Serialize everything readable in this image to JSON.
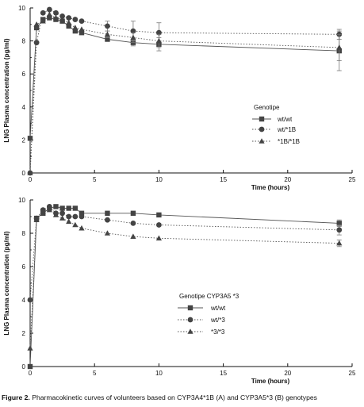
{
  "caption": {
    "label": "Figure 2.",
    "text": "Pharmacokinetic curves of volunteers based on CYP3A4*1B (A) and CYP3A5*3 (B) genotypes"
  },
  "chart_data": [
    {
      "type": "line",
      "title": "",
      "xlabel": "Time (hours)",
      "ylabel": "LNG Plasma concentration (pg/ml)",
      "xlim": [
        0,
        25
      ],
      "ylim": [
        0,
        10
      ],
      "xticks": [
        0,
        5,
        10,
        15,
        20,
        25
      ],
      "yticks": [
        0,
        2,
        4,
        6,
        8,
        10
      ],
      "legend": {
        "title": "Genotipe",
        "position": "right-middle"
      },
      "series": [
        {
          "name": "wt/wt",
          "marker": "square",
          "line": "solid",
          "x": [
            0,
            0.5,
            1,
            1.5,
            2,
            2.5,
            3,
            3.5,
            4,
            6,
            8,
            10,
            24
          ],
          "y": [
            2.1,
            8.8,
            9.3,
            9.4,
            9.3,
            9.2,
            8.9,
            8.6,
            8.5,
            8.1,
            7.9,
            7.8,
            7.4
          ],
          "err": [
            0,
            0,
            0,
            0,
            0,
            0,
            0,
            0,
            0,
            0,
            0.2,
            0.4,
            1.2
          ]
        },
        {
          "name": "wt/*1B",
          "marker": "circle",
          "line": "dotted",
          "x": [
            0,
            0.5,
            1,
            1.5,
            2,
            2.5,
            3,
            3.5,
            4,
            6,
            8,
            10,
            24
          ],
          "y": [
            0,
            7.9,
            9.7,
            9.9,
            9.7,
            9.5,
            9.4,
            9.3,
            9.2,
            8.9,
            8.6,
            8.5,
            8.4
          ],
          "err": [
            0,
            0,
            0,
            0,
            0,
            0,
            0,
            0,
            0,
            0.3,
            0.6,
            0.6,
            0.3
          ]
        },
        {
          "name": "*1B/*1B",
          "marker": "triangle",
          "line": "dotted",
          "x": [
            0,
            0.5,
            1,
            1.5,
            2,
            2.5,
            3,
            3.5,
            4,
            6,
            8,
            10,
            24
          ],
          "y": [
            0,
            9.0,
            9.2,
            9.6,
            9.4,
            9.3,
            9.1,
            8.8,
            8.7,
            8.4,
            8.2,
            8.0,
            7.6
          ],
          "err": [
            0,
            0,
            0,
            0,
            0,
            0,
            0,
            0,
            0,
            0.2,
            0.3,
            0.4,
            0.8
          ]
        }
      ]
    },
    {
      "type": "line",
      "title": "",
      "xlabel": "Time (hours)",
      "ylabel": "LNG Plasma concentration (pg/ml)",
      "xlim": [
        0,
        25
      ],
      "ylim": [
        0,
        10
      ],
      "xticks": [
        0,
        5,
        10,
        15,
        20,
        25
      ],
      "yticks": [
        0,
        2,
        4,
        6,
        8,
        10
      ],
      "legend": {
        "title": "Genotipe CYP3A5 *3",
        "position": "left-bottom"
      },
      "series": [
        {
          "name": "wt/wt",
          "marker": "square",
          "line": "solid",
          "x": [
            0,
            0.5,
            1,
            1.5,
            2,
            2.5,
            3,
            3.5,
            4,
            6,
            8,
            10,
            24
          ],
          "y": [
            0,
            8.9,
            9.2,
            9.5,
            9.6,
            9.5,
            9.5,
            9.5,
            9.2,
            9.2,
            9.2,
            9.1,
            8.6
          ],
          "err": [
            0,
            0,
            0,
            0,
            0,
            0,
            0,
            0,
            0,
            0,
            0,
            0,
            0.2
          ]
        },
        {
          "name": "wt/*3",
          "marker": "circle",
          "line": "dotted",
          "x": [
            0,
            0.5,
            1,
            1.5,
            2,
            2.5,
            3,
            3.5,
            4,
            6,
            8,
            10,
            24
          ],
          "y": [
            4.0,
            8.9,
            9.4,
            9.6,
            9.2,
            9.2,
            9.0,
            9.0,
            9.0,
            8.8,
            8.6,
            8.5,
            8.2
          ],
          "err": [
            0,
            0,
            0,
            0,
            0,
            0,
            0,
            0,
            0,
            0,
            0,
            0,
            0.3
          ]
        },
        {
          "name": "*3/*3",
          "marker": "triangle",
          "line": "dotted",
          "x": [
            0,
            0.5,
            1,
            1.5,
            2,
            2.5,
            3,
            3.5,
            4,
            6,
            8,
            10,
            24
          ],
          "y": [
            1.1,
            8.8,
            9.3,
            9.4,
            9.1,
            8.9,
            8.7,
            8.5,
            8.3,
            8.0,
            7.8,
            7.7,
            7.4
          ],
          "err": [
            0,
            0,
            0,
            0,
            0,
            0,
            0,
            0,
            0,
            0,
            0,
            0,
            0.2
          ]
        }
      ]
    }
  ]
}
